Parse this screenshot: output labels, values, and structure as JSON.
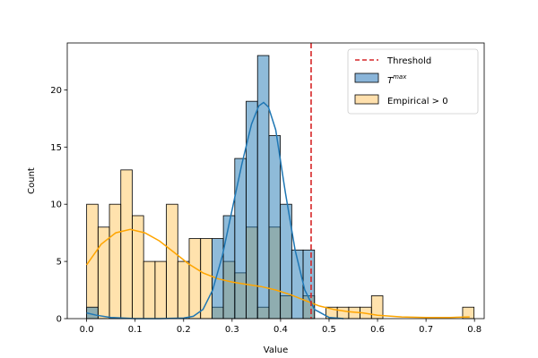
{
  "chart_data": {
    "type": "histogram",
    "xlabel": "Value",
    "ylabel": "Count",
    "xlim": [
      -0.04,
      0.82
    ],
    "ylim": [
      0,
      24.1
    ],
    "xticks": [
      "0.0",
      "0.1",
      "0.2",
      "0.3",
      "0.4",
      "0.5",
      "0.6",
      "0.7",
      "0.8"
    ],
    "yticks": [
      "0",
      "5",
      "10",
      "15",
      "20"
    ],
    "grid": false,
    "legend_position": "top-right",
    "bin_width": 0.0235,
    "threshold": {
      "name": "Threshold",
      "x": 0.463,
      "color": "#d62728",
      "style": "dashed"
    },
    "series": [
      {
        "name": "Empirical > 0",
        "color": "#ffa500",
        "fill": "#ffe0ad",
        "bin_starts": [
          0.0,
          0.0235,
          0.047,
          0.0705,
          0.094,
          0.1175,
          0.141,
          0.1645,
          0.188,
          0.2115,
          0.235,
          0.2585,
          0.282,
          0.3055,
          0.329,
          0.3525,
          0.376,
          0.3995,
          0.423,
          0.4465,
          0.47,
          0.4935,
          0.517,
          0.5405,
          0.564,
          0.5875,
          0.611,
          0.6345,
          0.658,
          0.6815,
          0.705,
          0.7285,
          0.752,
          0.7755
        ],
        "counts": [
          10,
          8,
          10,
          13,
          9,
          5,
          5,
          10,
          5,
          7,
          7,
          1,
          5,
          4,
          8,
          1,
          8,
          2,
          0,
          2,
          0,
          1,
          1,
          1,
          1,
          2,
          0,
          0,
          0,
          0,
          0,
          0,
          0,
          1
        ],
        "kde": [
          [
            0.0,
            4.7
          ],
          [
            0.03,
            6.5
          ],
          [
            0.06,
            7.5
          ],
          [
            0.09,
            7.8
          ],
          [
            0.12,
            7.5
          ],
          [
            0.15,
            6.8
          ],
          [
            0.18,
            5.8
          ],
          [
            0.21,
            4.8
          ],
          [
            0.24,
            4.0
          ],
          [
            0.27,
            3.5
          ],
          [
            0.3,
            3.2
          ],
          [
            0.33,
            3.0
          ],
          [
            0.36,
            2.8
          ],
          [
            0.39,
            2.5
          ],
          [
            0.42,
            2.1
          ],
          [
            0.45,
            1.6
          ],
          [
            0.48,
            1.1
          ],
          [
            0.51,
            0.8
          ],
          [
            0.54,
            0.6
          ],
          [
            0.57,
            0.5
          ],
          [
            0.6,
            0.3
          ],
          [
            0.65,
            0.15
          ],
          [
            0.7,
            0.1
          ],
          [
            0.75,
            0.1
          ],
          [
            0.79,
            0.15
          ]
        ]
      },
      {
        "name": "T^max",
        "label_main": "T",
        "label_sup": "max",
        "color": "#1f77b4",
        "fill": "#8ab5d9",
        "bin_starts": [
          0.0,
          0.0235,
          0.047,
          0.0705,
          0.094,
          0.1175,
          0.141,
          0.1645,
          0.188,
          0.2115,
          0.235,
          0.2585,
          0.282,
          0.3055,
          0.329,
          0.3525,
          0.376,
          0.3995,
          0.423,
          0.4465
        ],
        "counts": [
          1,
          0,
          0,
          0,
          0,
          0,
          0,
          0,
          0,
          0,
          0,
          7,
          9,
          14,
          19,
          23,
          16,
          10,
          6,
          6
        ],
        "kde": [
          [
            0.0,
            0.5
          ],
          [
            0.02,
            0.3
          ],
          [
            0.05,
            0.1
          ],
          [
            0.1,
            0.0
          ],
          [
            0.15,
            0.0
          ],
          [
            0.2,
            0.05
          ],
          [
            0.22,
            0.2
          ],
          [
            0.24,
            0.8
          ],
          [
            0.26,
            2.5
          ],
          [
            0.28,
            5.5
          ],
          [
            0.3,
            9.5
          ],
          [
            0.32,
            13.5
          ],
          [
            0.34,
            17.0
          ],
          [
            0.355,
            18.6
          ],
          [
            0.365,
            18.9
          ],
          [
            0.375,
            18.5
          ],
          [
            0.39,
            16.5
          ],
          [
            0.41,
            11.0
          ],
          [
            0.43,
            6.0
          ],
          [
            0.45,
            2.5
          ],
          [
            0.47,
            0.8
          ],
          [
            0.5,
            0.1
          ],
          [
            0.53,
            0.0
          ]
        ]
      }
    ]
  }
}
